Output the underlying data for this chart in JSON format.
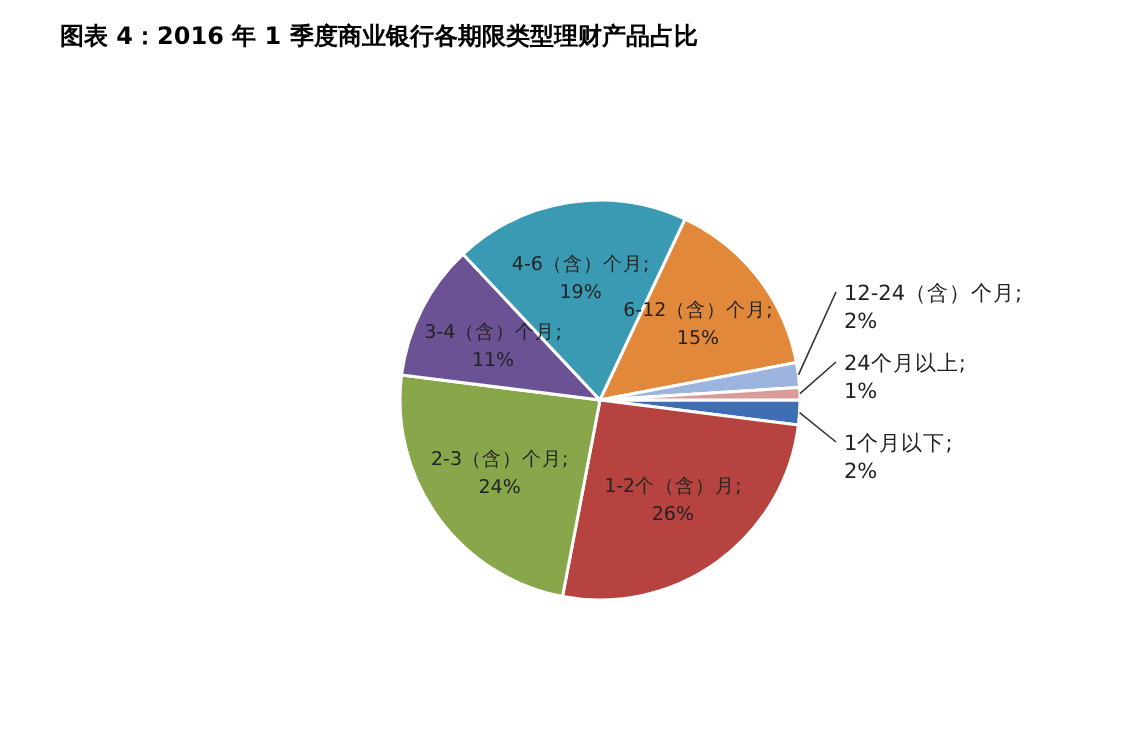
{
  "chart_data": {
    "type": "pie",
    "title": "图表 4：2016 年 1 季度商业银行各期限类型理财产品占比",
    "categories": [
      "1个月以下",
      "1-2个（含）月",
      "2-3（含）个月",
      "3-4（含）个月",
      "4-6（含）个月",
      "6-12（含）个月",
      "12-24（含）个月",
      "24个月以上"
    ],
    "values": [
      2,
      26,
      24,
      11,
      19,
      15,
      2,
      1
    ],
    "value_labels": [
      "; 2%",
      "; 26%",
      "; 24%",
      "; 11%",
      "; 19%",
      "; 15%",
      "; 2%",
      "; 1%"
    ],
    "colors": [
      "#3f6eb5",
      "#b6433f",
      "#88a74a",
      "#6b5295",
      "#3a9ab3",
      "#e2883a",
      "#9db4de",
      "#d99a98"
    ]
  }
}
